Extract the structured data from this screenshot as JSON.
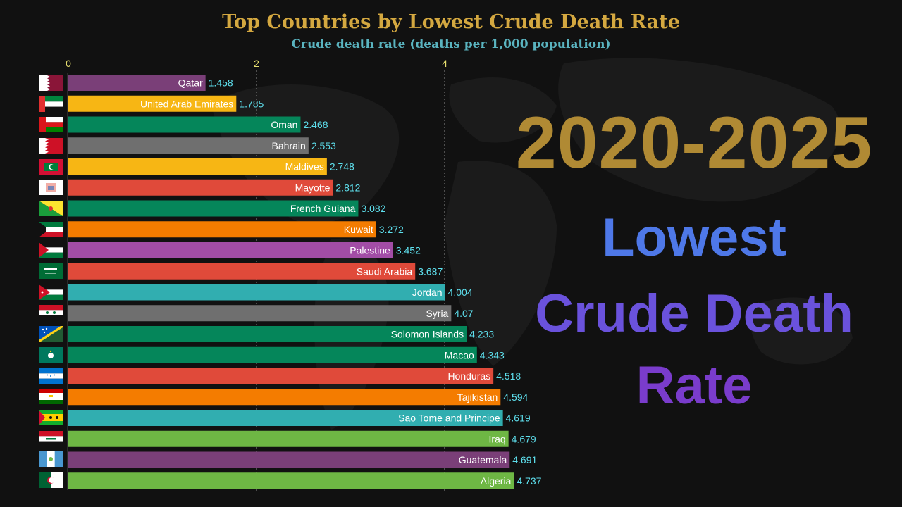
{
  "chart_data": {
    "type": "bar",
    "orientation": "horizontal",
    "title": "Top Countries by Lowest Crude Death Rate",
    "subtitle": "Crude death rate (deaths per 1,000 population)",
    "xlim": [
      0,
      5
    ],
    "xticks": [
      0,
      2,
      4
    ],
    "grid": true,
    "categories": [
      "Qatar",
      "United Arab Emirates",
      "Oman",
      "Bahrain",
      "Maldives",
      "Mayotte",
      "French Guiana",
      "Kuwait",
      "Palestine",
      "Saudi Arabia",
      "Jordan",
      "Syria",
      "Solomon Islands",
      "Macao",
      "Honduras",
      "Tajikistan",
      "Sao Tome and Principe",
      "Iraq",
      "Guatemala",
      "Algeria"
    ],
    "values": [
      1.458,
      1.785,
      2.468,
      2.553,
      2.748,
      2.812,
      3.082,
      3.272,
      3.452,
      3.687,
      4.004,
      4.07,
      4.233,
      4.343,
      4.518,
      4.594,
      4.619,
      4.679,
      4.691,
      4.737
    ],
    "value_labels": [
      "1.458",
      "1.785",
      "2.468",
      "2.553",
      "2.748",
      "2.812",
      "3.082",
      "3.272",
      "3.452",
      "3.687",
      "4.004",
      "4.07",
      "4.233",
      "4.343",
      "4.518",
      "4.594",
      "4.619",
      "4.679",
      "4.691",
      "4.737"
    ],
    "colors": [
      "#7a3f78",
      "#f7b614",
      "#05865a",
      "#6f6f6f",
      "#f7b614",
      "#e04a3a",
      "#05865a",
      "#f47c00",
      "#a24da6",
      "#e04a3a",
      "#31aeb0",
      "#6f6f6f",
      "#05865a",
      "#05865a",
      "#e04a3a",
      "#f47c00",
      "#31aeb0",
      "#6eb744",
      "#7a3f78",
      "#6eb744"
    ]
  },
  "side_panel": {
    "period": "2020-2025",
    "line1": "Lowest",
    "line2": "Crude Death",
    "line3": "Rate"
  }
}
